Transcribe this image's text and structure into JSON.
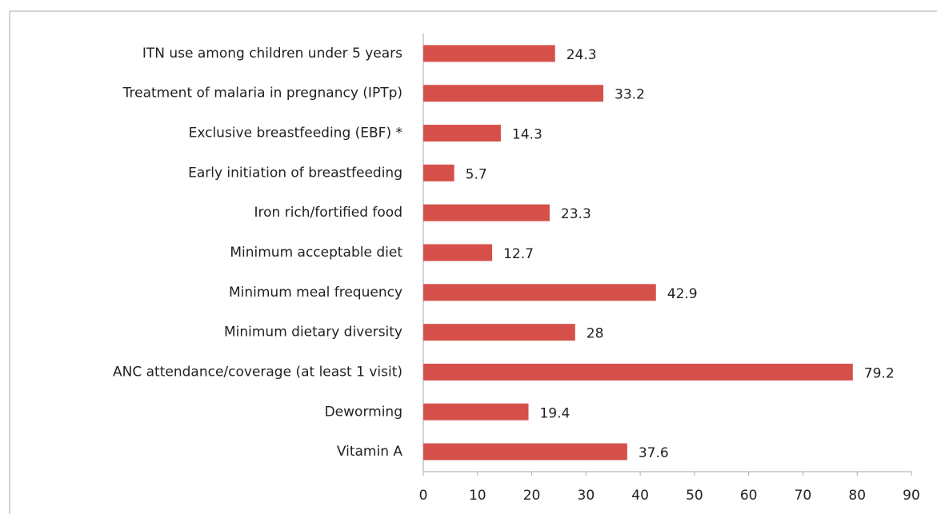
{
  "chart_data": {
    "type": "barh",
    "categories": [
      "ITN use among children under 5 years",
      "Treatment of malaria in pregnancy (IPTp)",
      "Exclusive breastfeeding (EBF) *",
      "Early initiation of breastfeeding",
      "Iron rich/fortified food",
      "Minimum acceptable diet",
      "Minimum meal frequency",
      "Minimum dietary diversity",
      "ANC attendance/coverage (at least 1 visit)",
      "Deworming",
      "Vitamin A"
    ],
    "values": [
      24.3,
      33.2,
      14.3,
      5.7,
      23.3,
      12.7,
      42.9,
      28,
      79.2,
      19.4,
      37.6
    ],
    "color": "#d6504a",
    "xlim": [
      0,
      90
    ],
    "xticks": [
      0,
      10,
      20,
      30,
      40,
      50,
      60,
      70,
      80,
      90
    ],
    "grid": false
  }
}
